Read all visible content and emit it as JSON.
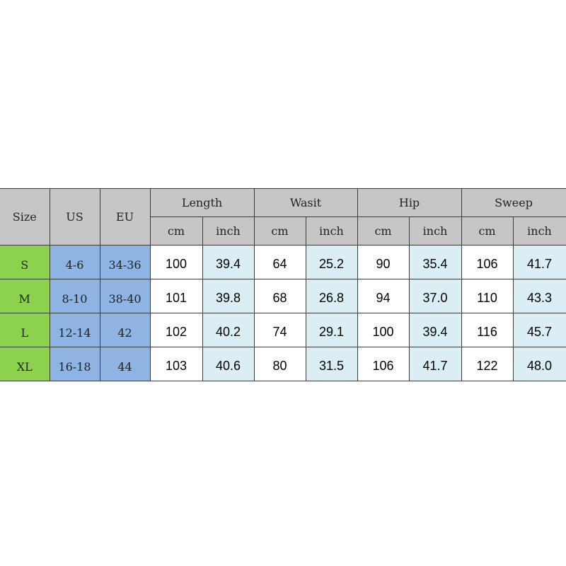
{
  "header": {
    "size": "Size",
    "us": "US",
    "eu": "EU",
    "groups": [
      "Length",
      "Wasit",
      "Hip",
      "Sweep"
    ],
    "units": [
      "cm",
      "inch"
    ]
  },
  "rows": [
    {
      "size": "S",
      "us": "4-6",
      "eu": "34-36",
      "values": [
        "100",
        "39.4",
        "64",
        "25.2",
        "90",
        "35.4",
        "106",
        "41.7"
      ]
    },
    {
      "size": "M",
      "us": "8-10",
      "eu": "38-40",
      "values": [
        "101",
        "39.8",
        "68",
        "26.8",
        "94",
        "37.0",
        "110",
        "43.3"
      ]
    },
    {
      "size": "L",
      "us": "12-14",
      "eu": "42",
      "values": [
        "102",
        "40.2",
        "74",
        "29.1",
        "100",
        "39.4",
        "116",
        "45.7"
      ]
    },
    {
      "size": "XL",
      "us": "16-18",
      "eu": "44",
      "values": [
        "103",
        "40.6",
        "80",
        "31.5",
        "106",
        "41.7",
        "122",
        "48.0"
      ]
    }
  ],
  "colors": {
    "header": "#c6c6c6",
    "size": "#8dd24f",
    "region": "#8db4e2",
    "inch": "#daeef3"
  }
}
